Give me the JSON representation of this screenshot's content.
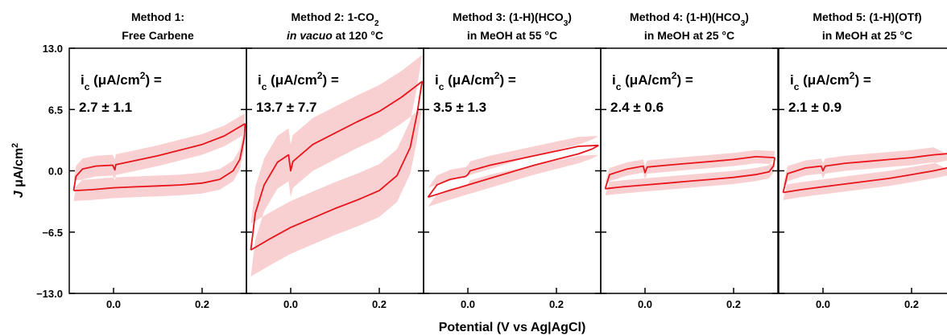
{
  "chart_data": {
    "type": "line",
    "xlabel": "Potential (V vs Ag|AgCl)",
    "ylabel": "J μA/cm²",
    "ylabel_parts": {
      "italic": "J",
      "rest": " μA/cm",
      "sup": "2"
    },
    "ylim": [
      -13.0,
      13.0
    ],
    "yticks": [
      "13.0",
      "6.5",
      "0.0",
      "−6.5",
      "−13.0"
    ],
    "xlim": [
      -0.1,
      0.3
    ],
    "xticks": [
      "0.0",
      "0.2"
    ],
    "annotation_prefix": {
      "i": "i",
      "sub": "c",
      "unit": " (μA/cm",
      "sup": "2",
      "end": ") ="
    },
    "panels": [
      {
        "title": {
          "line1": "Method 1:",
          "line2": "Free Carbene"
        },
        "annotation_value": "2.7 ± 1.1",
        "cv_forward": [
          [
            -0.09,
            -2.1
          ],
          [
            -0.05,
            -2.0
          ],
          [
            0.0,
            -1.8
          ],
          [
            0.05,
            -1.7
          ],
          [
            0.1,
            -1.6
          ],
          [
            0.15,
            -1.5
          ],
          [
            0.2,
            -1.3
          ],
          [
            0.24,
            -0.9
          ],
          [
            0.27,
            0.0
          ],
          [
            0.285,
            1.2
          ],
          [
            0.295,
            3.5
          ],
          [
            0.297,
            5.0
          ]
        ],
        "cv_reverse": [
          [
            0.297,
            5.0
          ],
          [
            0.25,
            3.7
          ],
          [
            0.2,
            2.8
          ],
          [
            0.15,
            2.2
          ],
          [
            0.1,
            1.6
          ],
          [
            0.05,
            1.1
          ],
          [
            0.005,
            0.65
          ],
          [
            0.003,
            0.1
          ],
          [
            -0.002,
            0.6
          ],
          [
            -0.04,
            0.5
          ],
          [
            -0.07,
            0.2
          ],
          [
            -0.085,
            -0.6
          ],
          [
            -0.09,
            -2.1
          ]
        ],
        "band_halfwidth": 1.1
      },
      {
        "title": {
          "line1": "Method 2: 1-CO",
          "line1_sub": "2",
          "line2_italic": "in vacuo",
          "line2": " at 120 °C"
        },
        "annotation_value": "13.7 ± 7.7",
        "cv_forward": [
          [
            -0.09,
            -8.4
          ],
          [
            -0.05,
            -7.3
          ],
          [
            0.0,
            -6.0
          ],
          [
            0.05,
            -5.0
          ],
          [
            0.1,
            -4.0
          ],
          [
            0.15,
            -3.1
          ],
          [
            0.2,
            -2.1
          ],
          [
            0.24,
            -0.5
          ],
          [
            0.27,
            2.5
          ],
          [
            0.285,
            6.0
          ],
          [
            0.295,
            9.0
          ],
          [
            0.297,
            9.5
          ]
        ],
        "cv_reverse": [
          [
            0.297,
            9.5
          ],
          [
            0.25,
            7.8
          ],
          [
            0.2,
            6.3
          ],
          [
            0.15,
            5.2
          ],
          [
            0.1,
            4.0
          ],
          [
            0.05,
            2.8
          ],
          [
            0.005,
            1.0
          ],
          [
            0.0,
            0.0
          ],
          [
            -0.005,
            1.7
          ],
          [
            -0.03,
            0.9
          ],
          [
            -0.06,
            -1.5
          ],
          [
            -0.08,
            -4.5
          ],
          [
            -0.09,
            -8.4
          ]
        ],
        "band_halfwidth": 2.8
      },
      {
        "title": {
          "line1": "Method 3: (1-H)(HCO",
          "line1_sub": "3",
          "line1_end": ")",
          "line2": "in MeOH at 55 °C"
        },
        "annotation_value": "3.5 ± 1.3",
        "cv_forward": [
          [
            -0.09,
            -2.8
          ],
          [
            -0.05,
            -2.2
          ],
          [
            0.0,
            -1.5
          ],
          [
            0.05,
            -0.8
          ],
          [
            0.1,
            -0.1
          ],
          [
            0.15,
            0.6
          ],
          [
            0.2,
            1.2
          ],
          [
            0.25,
            1.8
          ],
          [
            0.28,
            2.3
          ],
          [
            0.295,
            2.7
          ]
        ],
        "cv_reverse": [
          [
            0.295,
            2.7
          ],
          [
            0.25,
            2.6
          ],
          [
            0.2,
            2.1
          ],
          [
            0.15,
            1.6
          ],
          [
            0.1,
            1.1
          ],
          [
            0.05,
            0.6
          ],
          [
            0.005,
            0.0
          ],
          [
            0.0,
            -0.4
          ],
          [
            -0.005,
            -0.6
          ],
          [
            -0.04,
            -0.9
          ],
          [
            -0.07,
            -1.5
          ],
          [
            -0.09,
            -2.8
          ]
        ],
        "band_halfwidth": 1.0
      },
      {
        "title": {
          "line1": "Method 4: (1-H)(HCO",
          "line1_sub": "3",
          "line1_end": ")",
          "line2": "in MeOH at 25 °C"
        },
        "annotation_value": "2.4 ± 0.6",
        "cv_forward": [
          [
            -0.09,
            -1.9
          ],
          [
            -0.05,
            -1.7
          ],
          [
            0.0,
            -1.5
          ],
          [
            0.05,
            -1.3
          ],
          [
            0.1,
            -1.1
          ],
          [
            0.15,
            -0.9
          ],
          [
            0.2,
            -0.7
          ],
          [
            0.25,
            -0.4
          ],
          [
            0.28,
            -0.1
          ],
          [
            0.29,
            0.5
          ],
          [
            0.293,
            1.4
          ]
        ],
        "cv_reverse": [
          [
            0.293,
            1.4
          ],
          [
            0.25,
            1.5
          ],
          [
            0.2,
            1.2
          ],
          [
            0.15,
            1.0
          ],
          [
            0.1,
            0.8
          ],
          [
            0.05,
            0.6
          ],
          [
            0.005,
            0.4
          ],
          [
            0.0,
            -0.2
          ],
          [
            -0.004,
            0.5
          ],
          [
            -0.04,
            0.2
          ],
          [
            -0.08,
            -0.4
          ],
          [
            -0.09,
            -1.9
          ]
        ],
        "band_halfwidth": 0.7
      },
      {
        "title": {
          "line1": "Method 5: (1-H)(OTf)",
          "line2": "in MeOH at 25 °C"
        },
        "annotation_value": "2.1 ± 0.9",
        "cv_forward": [
          [
            -0.09,
            -2.3
          ],
          [
            -0.05,
            -2.0
          ],
          [
            0.0,
            -1.7
          ],
          [
            0.05,
            -1.4
          ],
          [
            0.1,
            -1.1
          ],
          [
            0.15,
            -0.8
          ],
          [
            0.2,
            -0.4
          ],
          [
            0.25,
            0.0
          ],
          [
            0.29,
            0.4
          ],
          [
            0.3,
            0.5
          ]
        ],
        "cv_reverse": [
          [
            0.3,
            1.9
          ],
          [
            0.25,
            1.7
          ],
          [
            0.2,
            1.4
          ],
          [
            0.15,
            1.2
          ],
          [
            0.1,
            1.0
          ],
          [
            0.05,
            0.8
          ],
          [
            0.005,
            0.5
          ],
          [
            0.0,
            0.0
          ],
          [
            -0.004,
            0.5
          ],
          [
            -0.04,
            0.3
          ],
          [
            -0.08,
            -0.3
          ],
          [
            -0.09,
            -2.3
          ]
        ],
        "band_halfwidth": 0.8
      }
    ],
    "line_color": "#e8141b",
    "band_color": "#f4a9ab",
    "grid": false
  }
}
